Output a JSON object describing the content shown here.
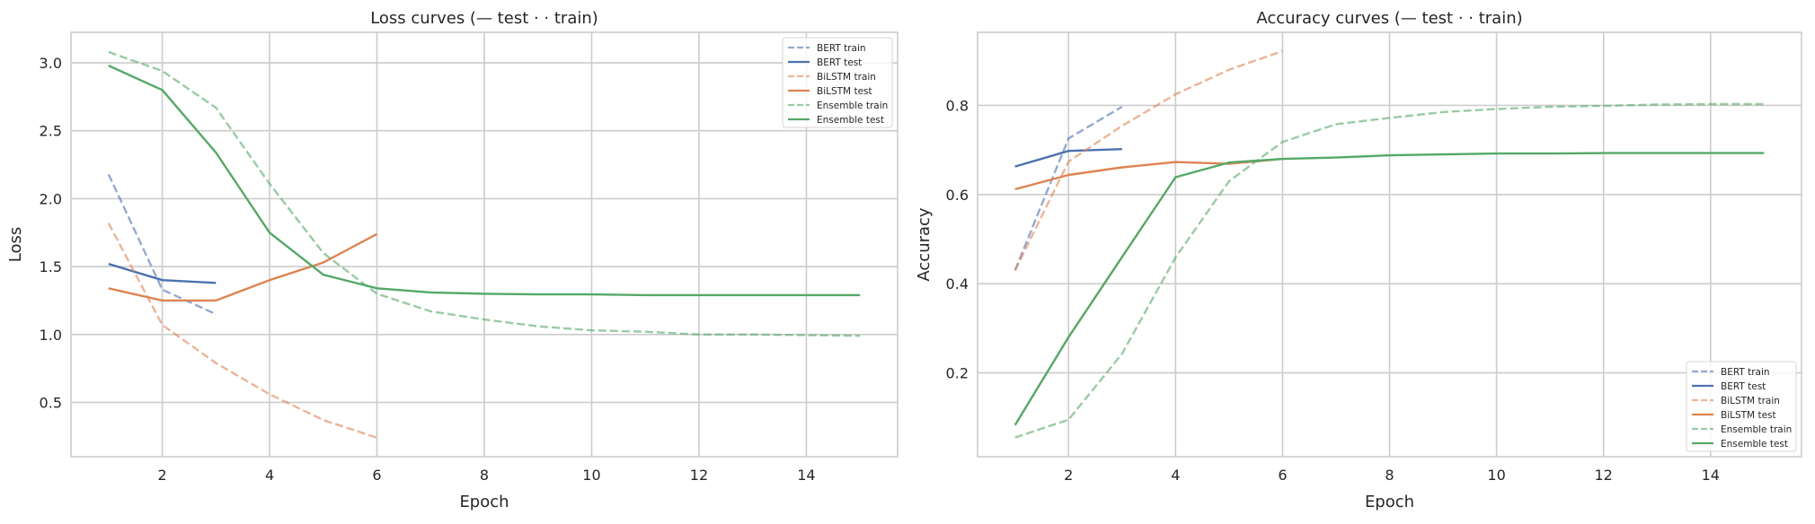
{
  "chart_data": [
    {
      "type": "line",
      "title": "Loss curves  (— test  · · train)",
      "xlabel": "Epoch",
      "ylabel": "Loss",
      "xlim": [
        0.3,
        15.7
      ],
      "ylim": [
        0.1,
        3.225
      ],
      "xticks": [
        2,
        4,
        6,
        8,
        10,
        12,
        14
      ],
      "yticks": [
        0.5,
        1.0,
        1.5,
        2.0,
        2.5,
        3.0
      ],
      "ytick_labels": [
        "0.5",
        "1.0",
        "1.5",
        "2.0",
        "2.5",
        "3.0"
      ],
      "grid": true,
      "legend_placement": "top-right",
      "series": [
        {
          "name": "BERT train",
          "color": "#4c72b0",
          "style": "dashed",
          "x": [
            1,
            2,
            3
          ],
          "y": [
            2.18,
            1.33,
            1.15
          ]
        },
        {
          "name": "BERT test",
          "color": "#4c72b0",
          "style": "solid",
          "x": [
            1,
            2,
            3
          ],
          "y": [
            1.52,
            1.4,
            1.38
          ]
        },
        {
          "name": "BiLSTM train",
          "color": "#dd8452",
          "style": "dashed",
          "x": [
            1,
            2,
            3,
            4,
            5,
            6
          ],
          "y": [
            1.82,
            1.07,
            0.79,
            0.56,
            0.37,
            0.24
          ]
        },
        {
          "name": "BiLSTM test",
          "color": "#dd8452",
          "style": "solid",
          "x": [
            1,
            2,
            3,
            4,
            5,
            6
          ],
          "y": [
            1.34,
            1.25,
            1.25,
            1.4,
            1.53,
            1.74
          ]
        },
        {
          "name": "Ensemble train",
          "color": "#55a868",
          "style": "dashed",
          "x": [
            1,
            2,
            3,
            4,
            5,
            6,
            7,
            8,
            9,
            10,
            11,
            12,
            13,
            14,
            15
          ],
          "y": [
            3.08,
            2.94,
            2.67,
            2.11,
            1.6,
            1.3,
            1.17,
            1.11,
            1.06,
            1.03,
            1.02,
            1.0,
            1.0,
            0.995,
            0.99
          ]
        },
        {
          "name": "Ensemble test",
          "color": "#55a868",
          "style": "solid",
          "x": [
            1,
            2,
            3,
            4,
            5,
            6,
            7,
            8,
            9,
            10,
            11,
            12,
            13,
            14,
            15
          ],
          "y": [
            2.98,
            2.8,
            2.34,
            1.75,
            1.44,
            1.34,
            1.31,
            1.3,
            1.295,
            1.295,
            1.29,
            1.29,
            1.29,
            1.29,
            1.29
          ]
        }
      ]
    },
    {
      "type": "line",
      "title": "Accuracy curves  (— test  · · train)",
      "xlabel": "Epoch",
      "ylabel": "Accuracy",
      "xlim": [
        0.3,
        15.7
      ],
      "ylim": [
        0.012,
        0.964
      ],
      "xticks": [
        2,
        4,
        6,
        8,
        10,
        12,
        14
      ],
      "yticks": [
        0.2,
        0.4,
        0.6,
        0.8
      ],
      "ytick_labels": [
        "0.2",
        "0.4",
        "0.6",
        "0.8"
      ],
      "grid": true,
      "legend_placement": "bottom-right",
      "series": [
        {
          "name": "BERT train",
          "color": "#4c72b0",
          "style": "dashed",
          "x": [
            1,
            2,
            3
          ],
          "y": [
            0.43,
            0.726,
            0.797
          ]
        },
        {
          "name": "BERT test",
          "color": "#4c72b0",
          "style": "solid",
          "x": [
            1,
            2,
            3
          ],
          "y": [
            0.663,
            0.698,
            0.702
          ]
        },
        {
          "name": "BiLSTM train",
          "color": "#dd8452",
          "style": "dashed",
          "x": [
            1,
            2,
            3,
            4,
            5,
            6
          ],
          "y": [
            0.43,
            0.674,
            0.754,
            0.825,
            0.88,
            0.922
          ]
        },
        {
          "name": "BiLSTM test",
          "color": "#dd8452",
          "style": "solid",
          "x": [
            1,
            2,
            3,
            4,
            5,
            6
          ],
          "y": [
            0.612,
            0.644,
            0.661,
            0.673,
            0.669,
            0.68
          ]
        },
        {
          "name": "Ensemble train",
          "color": "#55a868",
          "style": "dashed",
          "x": [
            1,
            2,
            3,
            4,
            5,
            6,
            7,
            8,
            9,
            10,
            11,
            12,
            13,
            14,
            15
          ],
          "y": [
            0.055,
            0.095,
            0.243,
            0.459,
            0.63,
            0.718,
            0.758,
            0.772,
            0.785,
            0.792,
            0.797,
            0.799,
            0.802,
            0.803,
            0.803
          ]
        },
        {
          "name": "Ensemble test",
          "color": "#55a868",
          "style": "solid",
          "x": [
            1,
            2,
            3,
            4,
            5,
            6,
            7,
            8,
            9,
            10,
            11,
            12,
            13,
            14,
            15
          ],
          "y": [
            0.083,
            0.28,
            0.46,
            0.639,
            0.672,
            0.68,
            0.683,
            0.688,
            0.69,
            0.692,
            0.692,
            0.693,
            0.693,
            0.693,
            0.693
          ]
        }
      ]
    }
  ]
}
